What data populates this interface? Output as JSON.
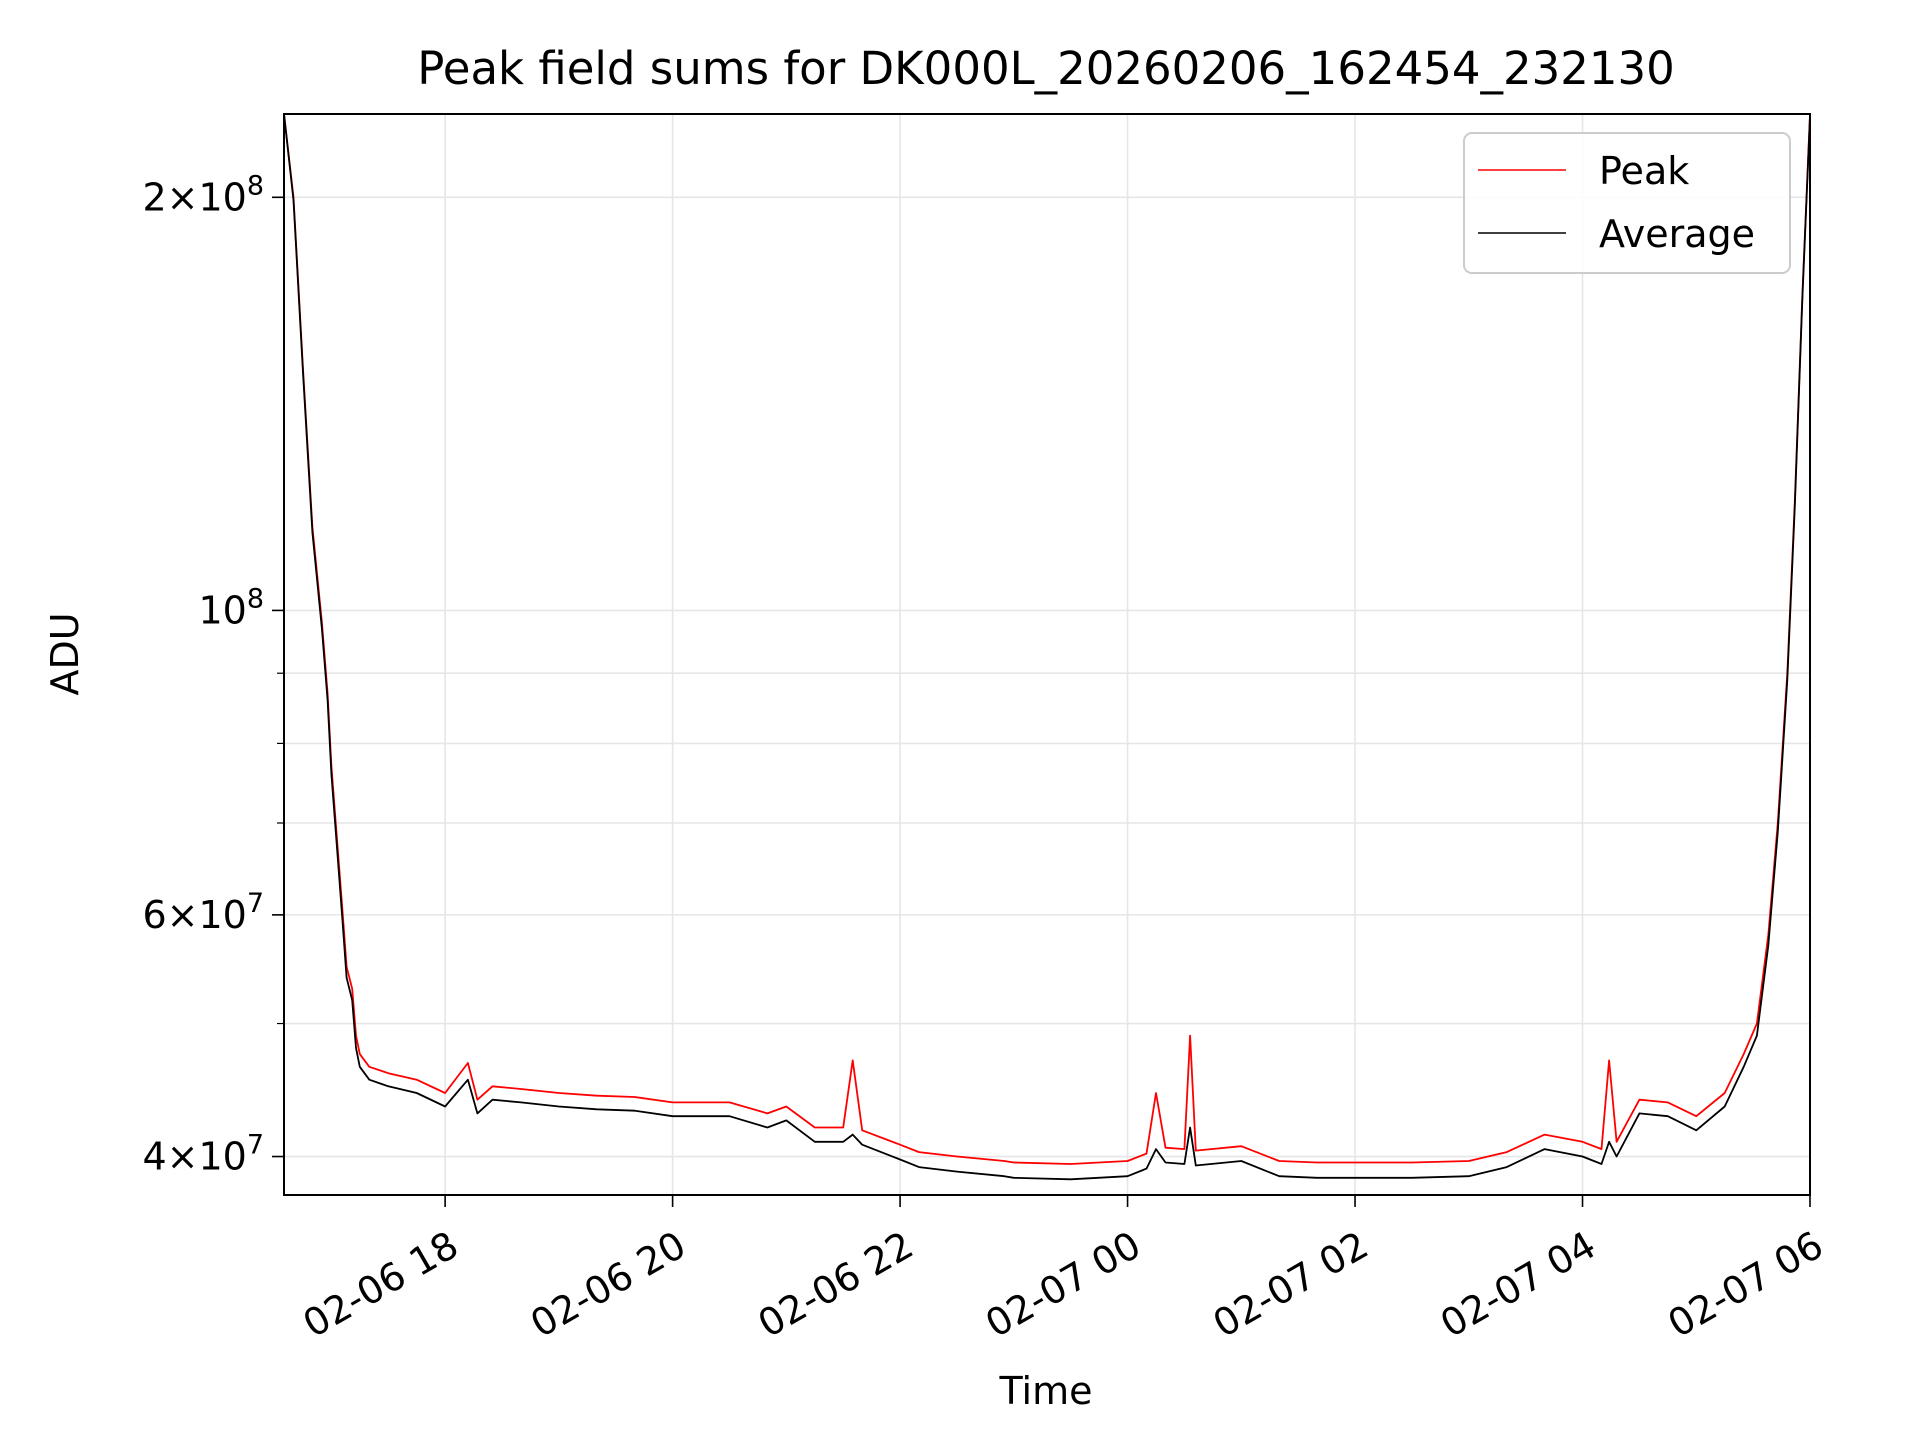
{
  "chart_data": {
    "type": "line",
    "title": "Peak field sums for DK000L_20260206_162454_232130",
    "xlabel": "Time",
    "ylabel": "ADU",
    "yscale": "log",
    "xlim": [
      "2026-02-06 16:35",
      "2026-02-07 06:00"
    ],
    "ylim": [
      37500000,
      230000000
    ],
    "grid": true,
    "legend": {
      "location": "top-right",
      "entries": [
        "Peak",
        "Average"
      ]
    },
    "xticks": [
      {
        "value": "2026-02-06 18:00",
        "label": "02-06 18"
      },
      {
        "value": "2026-02-06 20:00",
        "label": "02-06 20"
      },
      {
        "value": "2026-02-06 22:00",
        "label": "02-06 22"
      },
      {
        "value": "2026-02-07 00:00",
        "label": "02-07 00"
      },
      {
        "value": "2026-02-07 02:00",
        "label": "02-07 02"
      },
      {
        "value": "2026-02-07 04:00",
        "label": "02-07 04"
      },
      {
        "value": "2026-02-07 06:00",
        "label": "02-07 06"
      }
    ],
    "yticks": [
      {
        "value": 40000000,
        "base": "4",
        "exp": "7"
      },
      {
        "value": 60000000,
        "base": "6",
        "exp": "7"
      },
      {
        "value": 100000000,
        "base": "",
        "exp": "8"
      },
      {
        "value": 200000000,
        "base": "2",
        "exp": "8"
      }
    ],
    "yminor": [
      50000000,
      70000000,
      80000000,
      90000000
    ],
    "series": [
      {
        "name": "Peak",
        "color": "#ff0000",
        "x": [
          "2026-02-06 16:35",
          "2026-02-06 16:40",
          "2026-02-06 16:45",
          "2026-02-06 16:50",
          "2026-02-06 16:55",
          "2026-02-06 16:58",
          "2026-02-06 17:00",
          "2026-02-06 17:03",
          "2026-02-06 17:06",
          "2026-02-06 17:08",
          "2026-02-06 17:11",
          "2026-02-06 17:13",
          "2026-02-06 17:15",
          "2026-02-06 17:20",
          "2026-02-06 17:30",
          "2026-02-06 17:45",
          "2026-02-06 18:00",
          "2026-02-06 18:12",
          "2026-02-06 18:17",
          "2026-02-06 18:25",
          "2026-02-06 18:40",
          "2026-02-06 19:00",
          "2026-02-06 19:20",
          "2026-02-06 19:40",
          "2026-02-06 20:00",
          "2026-02-06 20:30",
          "2026-02-06 20:50",
          "2026-02-06 21:00",
          "2026-02-06 21:15",
          "2026-02-06 21:30",
          "2026-02-06 21:35",
          "2026-02-06 21:40",
          "2026-02-06 22:00",
          "2026-02-06 22:10",
          "2026-02-06 22:30",
          "2026-02-06 22:55",
          "2026-02-06 23:00",
          "2026-02-06 23:30",
          "2026-02-07 00:00",
          "2026-02-07 00:10",
          "2026-02-07 00:15",
          "2026-02-07 00:20",
          "2026-02-07 00:30",
          "2026-02-07 00:33",
          "2026-02-07 00:36",
          "2026-02-07 01:00",
          "2026-02-07 01:20",
          "2026-02-07 01:40",
          "2026-02-07 02:00",
          "2026-02-07 02:30",
          "2026-02-07 03:00",
          "2026-02-07 03:20",
          "2026-02-07 03:40",
          "2026-02-07 04:00",
          "2026-02-07 04:10",
          "2026-02-07 04:14",
          "2026-02-07 04:18",
          "2026-02-07 04:30",
          "2026-02-07 04:45",
          "2026-02-07 05:00",
          "2026-02-07 05:15",
          "2026-02-07 05:25",
          "2026-02-07 05:32",
          "2026-02-07 05:38",
          "2026-02-07 05:43",
          "2026-02-07 05:48",
          "2026-02-07 05:52",
          "2026-02-07 05:56",
          "2026-02-07 06:00"
        ],
        "values": [
          230000000,
          200000000,
          150000000,
          115000000,
          98000000,
          87000000,
          77000000,
          68000000,
          60000000,
          55000000,
          53000000,
          49000000,
          47500000,
          46500000,
          46000000,
          45500000,
          44500000,
          46800000,
          44000000,
          45000000,
          44800000,
          44500000,
          44300000,
          44200000,
          43800000,
          43800000,
          43000000,
          43500000,
          42000000,
          42000000,
          47000000,
          41800000,
          40800000,
          40300000,
          40000000,
          39700000,
          39600000,
          39500000,
          39700000,
          40200000,
          44500000,
          40600000,
          40500000,
          49000000,
          40400000,
          40700000,
          39700000,
          39600000,
          39600000,
          39600000,
          39700000,
          40300000,
          41500000,
          41000000,
          40500000,
          47000000,
          41000000,
          44000000,
          43800000,
          42800000,
          44500000,
          47500000,
          50000000,
          58000000,
          70000000,
          90000000,
          120000000,
          170000000,
          230000000
        ]
      },
      {
        "name": "Average",
        "color": "#000000",
        "x": [
          "2026-02-06 16:35",
          "2026-02-06 16:40",
          "2026-02-06 16:45",
          "2026-02-06 16:50",
          "2026-02-06 16:55",
          "2026-02-06 16:58",
          "2026-02-06 17:00",
          "2026-02-06 17:03",
          "2026-02-06 17:06",
          "2026-02-06 17:08",
          "2026-02-06 17:11",
          "2026-02-06 17:13",
          "2026-02-06 17:15",
          "2026-02-06 17:20",
          "2026-02-06 17:30",
          "2026-02-06 17:45",
          "2026-02-06 18:00",
          "2026-02-06 18:12",
          "2026-02-06 18:17",
          "2026-02-06 18:25",
          "2026-02-06 18:40",
          "2026-02-06 19:00",
          "2026-02-06 19:20",
          "2026-02-06 19:40",
          "2026-02-06 20:00",
          "2026-02-06 20:30",
          "2026-02-06 20:50",
          "2026-02-06 21:00",
          "2026-02-06 21:15",
          "2026-02-06 21:30",
          "2026-02-06 21:35",
          "2026-02-06 21:40",
          "2026-02-06 22:00",
          "2026-02-06 22:10",
          "2026-02-06 22:30",
          "2026-02-06 22:55",
          "2026-02-06 23:00",
          "2026-02-06 23:30",
          "2026-02-07 00:00",
          "2026-02-07 00:10",
          "2026-02-07 00:15",
          "2026-02-07 00:20",
          "2026-02-07 00:30",
          "2026-02-07 00:33",
          "2026-02-07 00:36",
          "2026-02-07 01:00",
          "2026-02-07 01:20",
          "2026-02-07 01:40",
          "2026-02-07 02:00",
          "2026-02-07 02:30",
          "2026-02-07 03:00",
          "2026-02-07 03:20",
          "2026-02-07 03:40",
          "2026-02-07 04:00",
          "2026-02-07 04:10",
          "2026-02-07 04:14",
          "2026-02-07 04:18",
          "2026-02-07 04:30",
          "2026-02-07 04:45",
          "2026-02-07 05:00",
          "2026-02-07 05:15",
          "2026-02-07 05:25",
          "2026-02-07 05:32",
          "2026-02-07 05:38",
          "2026-02-07 05:43",
          "2026-02-07 05:48",
          "2026-02-07 05:52",
          "2026-02-07 05:56",
          "2026-02-07 06:00"
        ],
        "values": [
          230000000,
          199000000,
          149000000,
          114000000,
          97000000,
          86000000,
          76000000,
          67000000,
          59000000,
          54000000,
          52000000,
          48000000,
          46500000,
          45500000,
          45000000,
          44500000,
          43500000,
          45500000,
          43000000,
          44000000,
          43800000,
          43500000,
          43300000,
          43200000,
          42800000,
          42800000,
          42000000,
          42500000,
          41000000,
          41000000,
          41500000,
          40800000,
          39800000,
          39300000,
          39000000,
          38700000,
          38600000,
          38500000,
          38700000,
          39200000,
          40500000,
          39600000,
          39500000,
          42000000,
          39400000,
          39700000,
          38700000,
          38600000,
          38600000,
          38600000,
          38700000,
          39300000,
          40500000,
          40000000,
          39500000,
          41000000,
          40000000,
          43000000,
          42800000,
          41800000,
          43500000,
          46500000,
          49000000,
          57000000,
          69000000,
          89000000,
          119000000,
          169000000,
          229000000
        ]
      }
    ]
  }
}
